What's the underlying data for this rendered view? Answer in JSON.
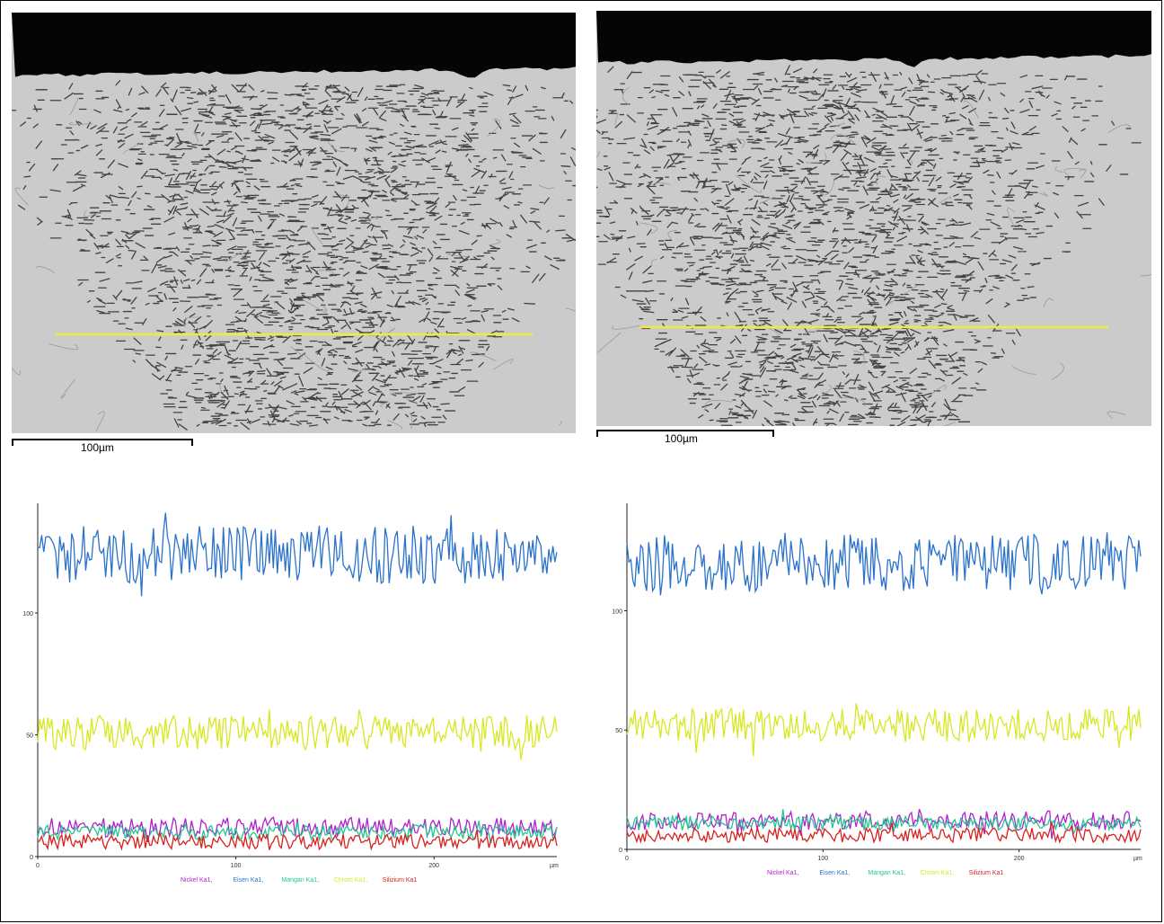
{
  "micrographs": [
    {
      "scale_label": "100µm",
      "line_color": "#f2ea3a"
    },
    {
      "scale_label": "100µm",
      "line_color": "#f2ea3a"
    }
  ],
  "chart_data": [
    {
      "type": "line",
      "title": "",
      "xlabel": "µm",
      "ylabel": "",
      "xlim": [
        0,
        262
      ],
      "ylim": [
        0,
        145
      ],
      "x_ticks": [
        0,
        100,
        200
      ],
      "y_ticks": [
        0,
        50,
        100
      ],
      "x_unit": "µm",
      "legend_position": "bottom-center",
      "grid": false,
      "series": [
        {
          "name": "Nickel  Ka1",
          "color": "#b020d0",
          "mean": 12,
          "amp": 4
        },
        {
          "name": "Eisen  Ka1",
          "color": "#2a72cc",
          "mean": 124,
          "amp": 12
        },
        {
          "name": "Mangan  Ka1",
          "color": "#20c890",
          "mean": 10,
          "amp": 3
        },
        {
          "name": "Chrom  Ka1",
          "color": "#d8e820",
          "mean": 51,
          "amp": 7
        },
        {
          "name": "Silizium  Ka1",
          "color": "#d82020",
          "mean": 6,
          "amp": 3
        }
      ]
    },
    {
      "type": "line",
      "title": "",
      "xlabel": "µm",
      "ylabel": "",
      "xlim": [
        0,
        262
      ],
      "ylim": [
        0,
        145
      ],
      "x_ticks": [
        0,
        100,
        200
      ],
      "y_ticks": [
        0,
        50,
        100
      ],
      "x_unit": "µm",
      "legend_position": "bottom-center",
      "grid": false,
      "series": [
        {
          "name": "Nickel  Ka1",
          "color": "#b020d0",
          "mean": 12,
          "amp": 4
        },
        {
          "name": "Eisen  Ka1",
          "color": "#2a72cc",
          "mean": 120,
          "amp": 12
        },
        {
          "name": "Mangan  Ka1",
          "color": "#20c890",
          "mean": 11,
          "amp": 3
        },
        {
          "name": "Chrom  Ka1",
          "color": "#d8e820",
          "mean": 52,
          "amp": 7
        },
        {
          "name": "Silizium  Ka1",
          "color": "#d82020",
          "mean": 6,
          "amp": 3
        }
      ]
    }
  ]
}
